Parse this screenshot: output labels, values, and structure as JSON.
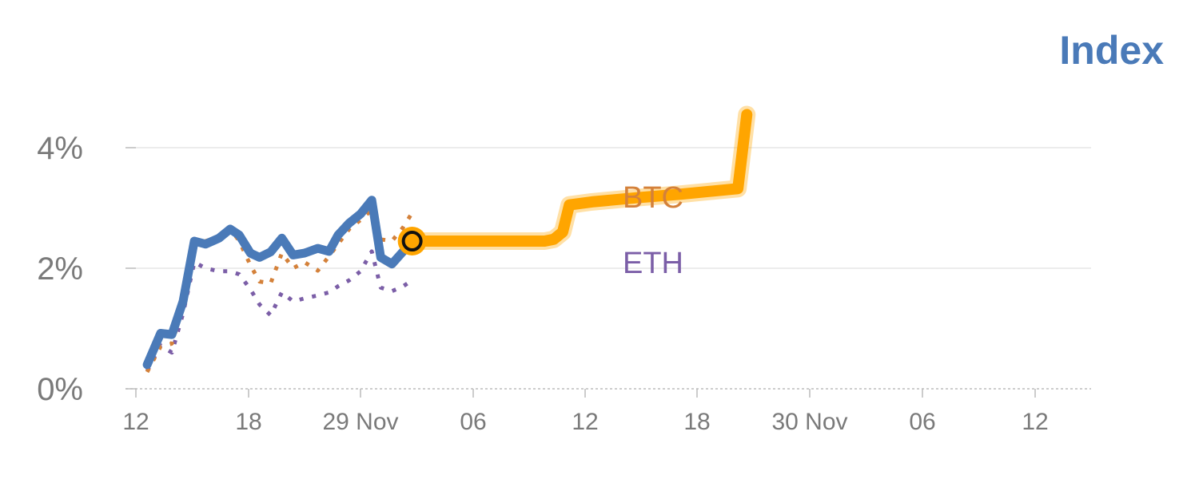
{
  "title": "Index",
  "colors": {
    "index": "#4a7ab8",
    "btc": "#d4813a",
    "eth": "#7b5ea7",
    "highlight": "#ffa500",
    "grid": "#e5e5e5",
    "axis": "#bbbbbb",
    "text": "#7a7a7a"
  },
  "chart_data": {
    "type": "line",
    "title": "Index",
    "xlabel": "",
    "ylabel": "",
    "x_tick_labels": [
      "12",
      "18",
      "29 Nov",
      "06",
      "12",
      "18",
      "30 Nov",
      "06",
      "12"
    ],
    "y_tick_labels": [
      "0%",
      "2%",
      "4%"
    ],
    "ylim": [
      0,
      4.9
    ],
    "grid": true,
    "series": [
      {
        "name": "Index",
        "style": "solid",
        "x": [
          0.5,
          1.1,
          1.6,
          2.1,
          2.6,
          3.1,
          3.7,
          4.2,
          4.6,
          5.1,
          5.5,
          6.0,
          6.5,
          7.0,
          7.5,
          8.1,
          8.6,
          9.0,
          9.5,
          10.0,
          10.5,
          10.9,
          11.4,
          11.9,
          12.3
        ],
        "y": [
          0.4,
          0.92,
          0.9,
          1.45,
          2.45,
          2.4,
          2.5,
          2.65,
          2.55,
          2.25,
          2.18,
          2.27,
          2.5,
          2.22,
          2.25,
          2.33,
          2.28,
          2.55,
          2.75,
          2.9,
          3.13,
          2.18,
          2.07,
          2.28,
          2.45
        ]
      },
      {
        "name": "BTC",
        "style": "dotted",
        "x": [
          0.5,
          1.1,
          1.6,
          2.1,
          2.6,
          3.1,
          3.7,
          4.2,
          4.6,
          5.1,
          5.5,
          6.0,
          6.5,
          7.0,
          7.5,
          8.1,
          8.6,
          9.0,
          9.5,
          10.0,
          10.5,
          10.9,
          11.4,
          11.9,
          12.3
        ],
        "y": [
          0.28,
          0.7,
          0.75,
          1.35,
          2.4,
          2.45,
          2.52,
          2.66,
          2.45,
          2.05,
          1.78,
          1.75,
          2.25,
          2.0,
          2.1,
          1.96,
          2.2,
          2.4,
          2.65,
          2.8,
          2.97,
          2.48,
          2.45,
          2.68,
          2.92
        ]
      },
      {
        "name": "ETH",
        "style": "dotted",
        "x": [
          0.5,
          1.1,
          1.6,
          2.1,
          2.6,
          3.1,
          3.7,
          4.2,
          4.6,
          5.1,
          5.5,
          6.0,
          6.5,
          7.0,
          7.5,
          8.1,
          8.6,
          9.0,
          9.5,
          10.0,
          10.5,
          10.9,
          11.4,
          11.9,
          12.3
        ],
        "y": [
          0.3,
          0.72,
          0.6,
          1.25,
          2.1,
          2.0,
          1.95,
          1.95,
          1.9,
          1.65,
          1.4,
          1.22,
          1.6,
          1.45,
          1.5,
          1.55,
          1.6,
          1.7,
          1.8,
          1.95,
          2.28,
          1.68,
          1.62,
          1.7,
          1.8
        ]
      },
      {
        "name": "Index",
        "style": "highlight",
        "x": [
          12.3,
          14.3,
          16.3,
          18.2,
          18.6,
          19.0,
          19.3,
          20.3,
          22.3,
          24.3,
          26.8,
          27.2
        ],
        "y": [
          2.45,
          2.45,
          2.45,
          2.45,
          2.48,
          2.6,
          3.05,
          3.1,
          3.17,
          3.23,
          3.32,
          4.55
        ]
      }
    ],
    "markers": [
      {
        "x": 12.3,
        "y": 2.45
      }
    ],
    "labels": {
      "btc": "BTC",
      "eth": "ETH"
    }
  }
}
